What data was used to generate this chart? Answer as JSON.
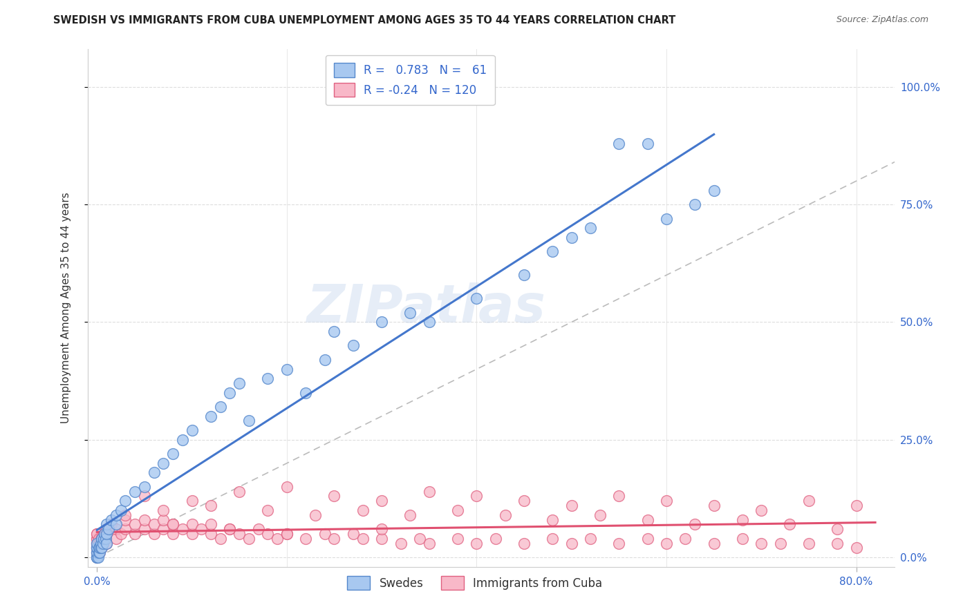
{
  "title": "SWEDISH VS IMMIGRANTS FROM CUBA UNEMPLOYMENT AMONG AGES 35 TO 44 YEARS CORRELATION CHART",
  "source": "Source: ZipAtlas.com",
  "ylabel": "Unemployment Among Ages 35 to 44 years",
  "ytick_values": [
    0.0,
    0.25,
    0.5,
    0.75,
    1.0
  ],
  "ytick_labels": [
    "0.0%",
    "25.0%",
    "50.0%",
    "75.0%",
    "100.0%"
  ],
  "xtick_values": [
    0.0,
    0.8
  ],
  "xtick_labels": [
    "0.0%",
    "80.0%"
  ],
  "xlim": [
    -0.01,
    0.84
  ],
  "ylim": [
    -0.02,
    1.08
  ],
  "blue_R": 0.783,
  "blue_N": 61,
  "pink_R": -0.24,
  "pink_N": 120,
  "legend_swedes": "Swedes",
  "legend_cuba": "Immigrants from Cuba",
  "blue_fill": "#A8C8F0",
  "blue_edge": "#5588CC",
  "pink_fill": "#F8B8C8",
  "pink_edge": "#E06080",
  "blue_line": "#4477CC",
  "pink_line": "#E05070",
  "diag_line": "#BBBBBB",
  "watermark_color": "#C8D8EE",
  "grid_color": "#DDDDDD",
  "tick_color": "#3366CC",
  "title_color": "#222222",
  "source_color": "#666666",
  "ylabel_color": "#333333",
  "blue_x": [
    0.0,
    0.0,
    0.0,
    0.0,
    0.0,
    0.0,
    0.0,
    0.0,
    0.001,
    0.002,
    0.002,
    0.003,
    0.003,
    0.004,
    0.004,
    0.005,
    0.005,
    0.006,
    0.007,
    0.008,
    0.009,
    0.01,
    0.01,
    0.01,
    0.012,
    0.015,
    0.02,
    0.02,
    0.025,
    0.03,
    0.04,
    0.05,
    0.06,
    0.07,
    0.08,
    0.09,
    0.1,
    0.12,
    0.13,
    0.14,
    0.15,
    0.16,
    0.18,
    0.2,
    0.22,
    0.24,
    0.25,
    0.27,
    0.3,
    0.33,
    0.35,
    0.4,
    0.45,
    0.48,
    0.5,
    0.52,
    0.55,
    0.58,
    0.6,
    0.63,
    0.65
  ],
  "blue_y": [
    0.0,
    0.0,
    0.0,
    0.01,
    0.01,
    0.02,
    0.02,
    0.03,
    0.0,
    0.01,
    0.02,
    0.01,
    0.02,
    0.02,
    0.03,
    0.02,
    0.04,
    0.03,
    0.04,
    0.05,
    0.04,
    0.03,
    0.05,
    0.07,
    0.06,
    0.08,
    0.07,
    0.09,
    0.1,
    0.12,
    0.14,
    0.15,
    0.18,
    0.2,
    0.22,
    0.25,
    0.27,
    0.3,
    0.32,
    0.35,
    0.37,
    0.29,
    0.38,
    0.4,
    0.35,
    0.42,
    0.48,
    0.45,
    0.5,
    0.52,
    0.5,
    0.55,
    0.6,
    0.65,
    0.68,
    0.7,
    0.88,
    0.88,
    0.72,
    0.75,
    0.78
  ],
  "pink_x": [
    0.0,
    0.0,
    0.0,
    0.0,
    0.0,
    0.0,
    0.0,
    0.0,
    0.0,
    0.0,
    0.001,
    0.001,
    0.002,
    0.002,
    0.003,
    0.003,
    0.004,
    0.004,
    0.005,
    0.005,
    0.006,
    0.007,
    0.008,
    0.009,
    0.01,
    0.01,
    0.01,
    0.015,
    0.02,
    0.02,
    0.025,
    0.03,
    0.03,
    0.04,
    0.04,
    0.05,
    0.05,
    0.06,
    0.06,
    0.07,
    0.07,
    0.08,
    0.08,
    0.09,
    0.1,
    0.1,
    0.11,
    0.12,
    0.12,
    0.13,
    0.14,
    0.15,
    0.16,
    0.17,
    0.18,
    0.19,
    0.2,
    0.22,
    0.24,
    0.25,
    0.27,
    0.28,
    0.3,
    0.32,
    0.34,
    0.35,
    0.38,
    0.4,
    0.42,
    0.45,
    0.48,
    0.5,
    0.52,
    0.55,
    0.58,
    0.6,
    0.62,
    0.65,
    0.68,
    0.7,
    0.72,
    0.75,
    0.78,
    0.8,
    0.05,
    0.1,
    0.15,
    0.2,
    0.25,
    0.3,
    0.35,
    0.4,
    0.45,
    0.5,
    0.55,
    0.6,
    0.65,
    0.7,
    0.75,
    0.8,
    0.03,
    0.07,
    0.12,
    0.18,
    0.23,
    0.28,
    0.33,
    0.38,
    0.43,
    0.48,
    0.53,
    0.58,
    0.63,
    0.68,
    0.73,
    0.78,
    0.08,
    0.14,
    0.2,
    0.3
  ],
  "pink_y": [
    0.0,
    0.01,
    0.02,
    0.02,
    0.03,
    0.03,
    0.04,
    0.04,
    0.05,
    0.05,
    0.01,
    0.03,
    0.02,
    0.04,
    0.01,
    0.03,
    0.02,
    0.04,
    0.02,
    0.04,
    0.03,
    0.04,
    0.05,
    0.04,
    0.03,
    0.05,
    0.06,
    0.07,
    0.04,
    0.06,
    0.05,
    0.06,
    0.08,
    0.05,
    0.07,
    0.06,
    0.08,
    0.05,
    0.07,
    0.06,
    0.08,
    0.05,
    0.07,
    0.06,
    0.05,
    0.07,
    0.06,
    0.05,
    0.07,
    0.04,
    0.06,
    0.05,
    0.04,
    0.06,
    0.05,
    0.04,
    0.05,
    0.04,
    0.05,
    0.04,
    0.05,
    0.04,
    0.04,
    0.03,
    0.04,
    0.03,
    0.04,
    0.03,
    0.04,
    0.03,
    0.04,
    0.03,
    0.04,
    0.03,
    0.04,
    0.03,
    0.04,
    0.03,
    0.04,
    0.03,
    0.03,
    0.03,
    0.03,
    0.02,
    0.13,
    0.12,
    0.14,
    0.15,
    0.13,
    0.12,
    0.14,
    0.13,
    0.12,
    0.11,
    0.13,
    0.12,
    0.11,
    0.1,
    0.12,
    0.11,
    0.09,
    0.1,
    0.11,
    0.1,
    0.09,
    0.1,
    0.09,
    0.1,
    0.09,
    0.08,
    0.09,
    0.08,
    0.07,
    0.08,
    0.07,
    0.06,
    0.07,
    0.06,
    0.05,
    0.06
  ]
}
